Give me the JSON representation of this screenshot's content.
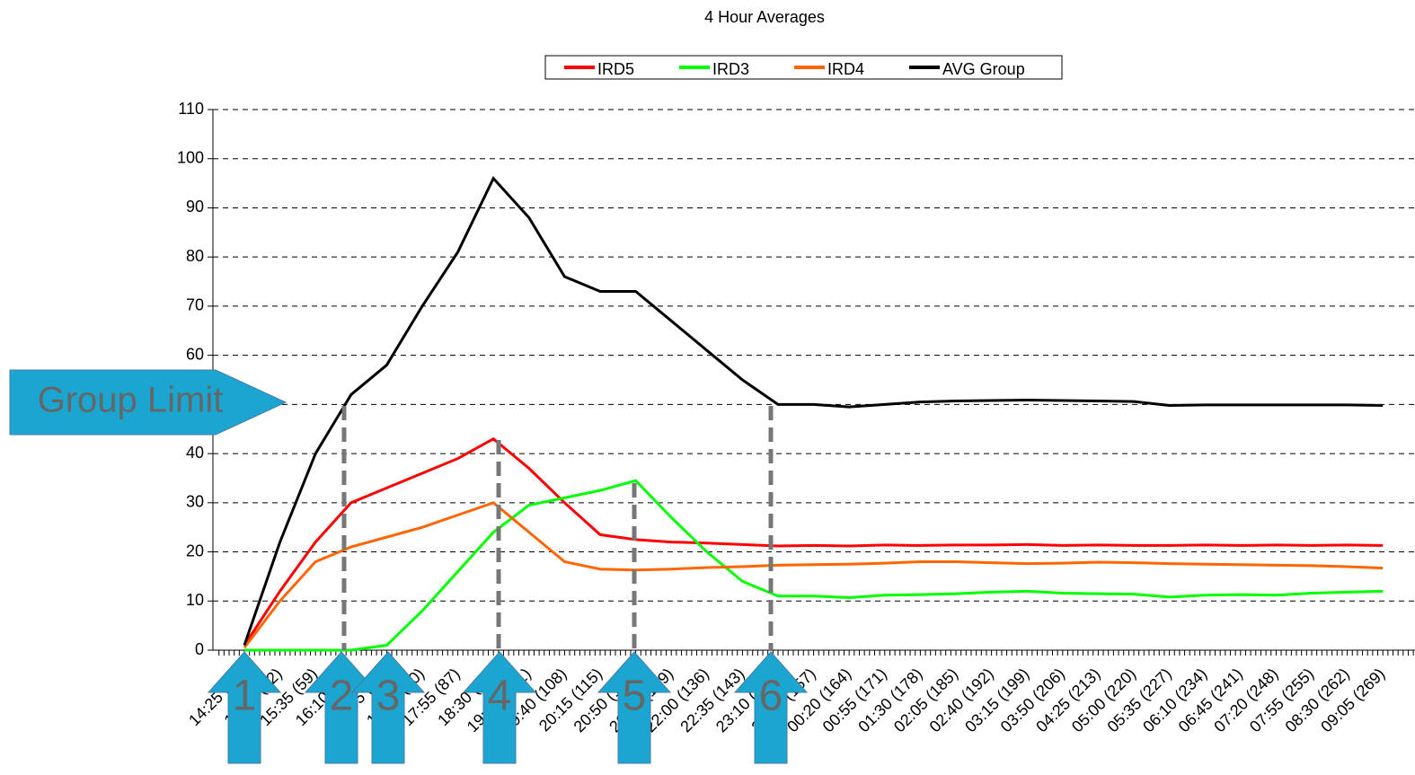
{
  "chart_data": {
    "type": "line",
    "title": "4 Hour Averages",
    "categories": [
      "14:25 (45)",
      "15:00 (52)",
      "15:35 (59)",
      "16:10 (66)",
      "16:45 (73)",
      "17:20 (80)",
      "17:55 (87)",
      "18:30 (94)",
      "19:05 (101)",
      "19:40 (108)",
      "20:15 (115)",
      "20:50 (122)",
      "21:25 (129)",
      "22:00 (136)",
      "22:35 (143)",
      "23:10 (150)",
      "23:45 (157)",
      "00:20 (164)",
      "00:55 (171)",
      "01:30 (178)",
      "02:05 (185)",
      "02:40 (192)",
      "03:15 (199)",
      "03:50 (206)",
      "04:25 (213)",
      "05:00 (220)",
      "05:35 (227)",
      "06:10 (234)",
      "06:45 (241)",
      "07:20 (248)",
      "07:55 (255)",
      "08:30 (262)",
      "09:05 (269)"
    ],
    "series": [
      {
        "name": "IRD5",
        "color": "#ff0000",
        "values": [
          1,
          12,
          22,
          30,
          33,
          36,
          39,
          43,
          37,
          30,
          23.5,
          22.5,
          22,
          21.8,
          21.5,
          21.2,
          21.3,
          21.2,
          21.4,
          21.3,
          21.4,
          21.4,
          21.5,
          21.3,
          21.4,
          21.3,
          21.3,
          21.4,
          21.3,
          21.4,
          21.3,
          21.4,
          21.3
        ]
      },
      {
        "name": "IRD3",
        "color": "#00ff00",
        "values": [
          0,
          0,
          0,
          0,
          1,
          8,
          16,
          24,
          29.5,
          31,
          32.5,
          34.5,
          27,
          20,
          14,
          11,
          11,
          10.7,
          11.2,
          11.3,
          11.5,
          11.8,
          12,
          11.6,
          11.5,
          11.4,
          10.8,
          11.2,
          11.3,
          11.2,
          11.6,
          11.8,
          12
        ]
      },
      {
        "name": "IRD4",
        "color": "#ff6600",
        "values": [
          0.5,
          10,
          18,
          21,
          23,
          25,
          27.5,
          30,
          24,
          18,
          16.5,
          16.3,
          16.5,
          16.8,
          17,
          17.3,
          17.4,
          17.5,
          17.7,
          18,
          18,
          17.8,
          17.6,
          17.7,
          17.9,
          17.8,
          17.6,
          17.5,
          17.4,
          17.3,
          17.2,
          17,
          16.7
        ]
      },
      {
        "name": "AVG Group",
        "color": "#000000",
        "values": [
          1,
          22,
          40,
          52,
          58,
          70,
          81,
          96,
          88,
          76,
          73,
          73,
          67,
          61,
          55,
          50,
          50,
          49.5,
          50,
          50.5,
          50.7,
          50.8,
          50.9,
          50.8,
          50.7,
          50.6,
          49.8,
          49.9,
          49.9,
          49.9,
          49.9,
          49.9,
          49.8
        ]
      }
    ],
    "ylim": [
      0,
      110
    ],
    "yticks": [
      0,
      10,
      20,
      30,
      40,
      50,
      60,
      70,
      80,
      90,
      100,
      110
    ],
    "grid": true,
    "annotations": [
      "Group Limit",
      "1",
      "2",
      "3",
      "4",
      "5",
      "6"
    ]
  }
}
